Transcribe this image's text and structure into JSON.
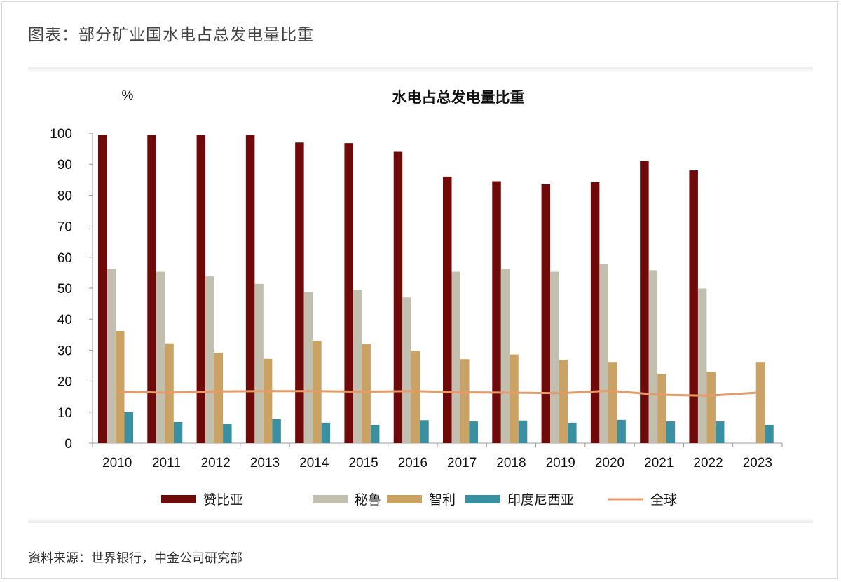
{
  "figure": {
    "title": "图表：部分矿业国水电占总发电量比重",
    "source": "资料来源：世界银行，中金公司研究部"
  },
  "chart_data": {
    "type": "bar",
    "title": "水电占总发电量比重",
    "ylabel": "%",
    "xlabel": "",
    "ylim": [
      0,
      100
    ],
    "yticks": [
      0,
      10,
      20,
      30,
      40,
      50,
      60,
      70,
      80,
      90,
      100
    ],
    "categories": [
      "2010",
      "2011",
      "2012",
      "2013",
      "2014",
      "2015",
      "2016",
      "2017",
      "2018",
      "2019",
      "2020",
      "2021",
      "2022",
      "2023"
    ],
    "series": [
      {
        "name": "赞比亚",
        "type": "bar",
        "color": "#6e0a0a",
        "values": [
          99.5,
          99.5,
          99.5,
          99.5,
          97,
          96.8,
          94,
          86,
          84.5,
          83.5,
          84.2,
          91,
          88,
          null
        ]
      },
      {
        "name": "秘鲁",
        "type": "bar",
        "color": "#c2bfaf",
        "values": [
          56.2,
          55.3,
          53.8,
          51.4,
          48.8,
          49.5,
          47,
          55.3,
          56.1,
          55.3,
          57.9,
          55.8,
          49.9,
          null
        ]
      },
      {
        "name": "智利",
        "type": "bar",
        "color": "#caa364",
        "values": [
          36.2,
          32.2,
          29.2,
          27.2,
          33,
          32,
          29.7,
          27.1,
          28.6,
          26.9,
          26.2,
          22.2,
          23,
          26.2
        ]
      },
      {
        "name": "印度尼西亚",
        "type": "bar",
        "color": "#3a8fa0",
        "values": [
          10,
          6.8,
          6.2,
          7.7,
          6.6,
          5.9,
          7.4,
          7,
          7.3,
          6.6,
          7.5,
          7,
          7,
          5.9
        ]
      },
      {
        "name": "全球",
        "type": "line",
        "color": "#e59a68",
        "values": [
          16.6,
          16.3,
          16.7,
          16.8,
          16.8,
          16.6,
          16.8,
          16.4,
          16.3,
          16.1,
          16.9,
          15.6,
          15.3,
          16.3
        ]
      }
    ],
    "legend_position": "bottom",
    "grid": false
  }
}
